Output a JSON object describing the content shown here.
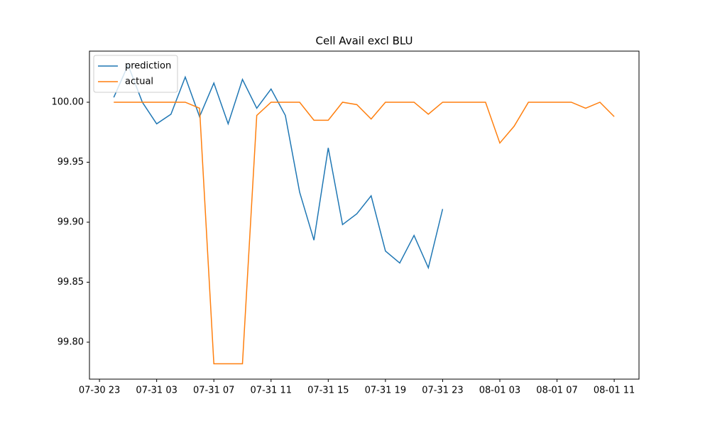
{
  "chart_data": {
    "type": "line",
    "title": "Cell Avail excl BLU",
    "x": [
      "07-31 00",
      "07-31 01",
      "07-31 02",
      "07-31 03",
      "07-31 04",
      "07-31 05",
      "07-31 06",
      "07-31 07",
      "07-31 08",
      "07-31 09",
      "07-31 10",
      "07-31 11",
      "07-31 12",
      "07-31 13",
      "07-31 14",
      "07-31 15",
      "07-31 16",
      "07-31 17",
      "07-31 18",
      "07-31 19",
      "07-31 20",
      "07-31 21",
      "07-31 22",
      "07-31 23",
      "08-01 00",
      "08-01 01",
      "08-01 02",
      "08-01 03",
      "08-01 04",
      "08-01 05",
      "08-01 06",
      "08-01 07",
      "08-01 08",
      "08-01 09",
      "08-01 10",
      "08-01 11"
    ],
    "series": [
      {
        "name": "prediction",
        "color": "#1f77b4",
        "values": [
          100.004,
          100.031,
          100.0,
          99.982,
          99.99,
          100.021,
          99.988,
          100.016,
          99.982,
          100.019,
          99.995,
          100.011,
          99.989,
          99.925,
          99.885,
          99.962,
          99.898,
          99.907,
          99.922,
          99.876,
          99.866,
          99.889,
          99.862,
          99.911,
          null,
          null,
          null,
          null,
          null,
          null,
          null,
          null,
          null,
          null,
          null,
          null
        ]
      },
      {
        "name": "actual",
        "color": "#ff7f0e",
        "values": [
          100.0,
          100.0,
          100.0,
          100.0,
          100.0,
          100.0,
          99.995,
          99.782,
          99.782,
          99.782,
          99.989,
          100.0,
          100.0,
          100.0,
          99.985,
          99.985,
          100.0,
          99.998,
          99.986,
          100.0,
          100.0,
          100.0,
          99.99,
          100.0,
          100.0,
          100.0,
          100.0,
          99.966,
          99.98,
          100.0,
          100.0,
          100.0,
          100.0,
          99.995,
          100.0,
          99.988
        ]
      }
    ],
    "xlim": [
      "07-30 22:18",
      "08-01 12:44"
    ],
    "xticks": [
      "07-30 23",
      "07-31 03",
      "07-31 07",
      "07-31 11",
      "07-31 15",
      "07-31 19",
      "07-31 23",
      "08-01 03",
      "08-01 07",
      "08-01 11"
    ],
    "ylim": [
      99.7692,
      100.0426
    ],
    "yticks": [
      {
        "value": 99.8,
        "label": "99.80"
      },
      {
        "value": 99.85,
        "label": "99.85"
      },
      {
        "value": 99.9,
        "label": "99.90"
      },
      {
        "value": 99.95,
        "label": "99.95"
      },
      {
        "value": 100.0,
        "label": "100.00"
      }
    ],
    "legend": "upper left",
    "grid": false
  }
}
